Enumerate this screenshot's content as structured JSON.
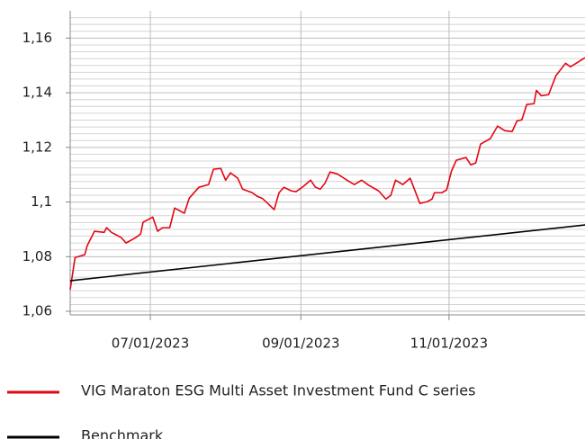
{
  "chart_data": {
    "type": "line",
    "xlim": [
      "2023-05-29",
      "2023-12-27"
    ],
    "xticks": [
      {
        "value": "2023-07-01",
        "label": "07/01/2023"
      },
      {
        "value": "2023-09-01",
        "label": "09/01/2023"
      },
      {
        "value": "2023-11-01",
        "label": "11/01/2023"
      }
    ],
    "ylim": [
      1.0587,
      1.17
    ],
    "yticks": [
      {
        "value": 1.06,
        "label": "1,06"
      },
      {
        "value": 1.08,
        "label": "1,08"
      },
      {
        "value": 1.1,
        "label": "1,1"
      },
      {
        "value": 1.12,
        "label": "1,12"
      },
      {
        "value": 1.14,
        "label": "1,14"
      },
      {
        "value": 1.16,
        "label": "1,16"
      }
    ],
    "yticks_minor": [
      1.0625,
      1.065,
      1.0675,
      1.07,
      1.0725,
      1.075,
      1.0775,
      1.0825,
      1.085,
      1.0875,
      1.09,
      1.0925,
      1.095,
      1.0975,
      1.1025,
      1.105,
      1.1075,
      1.11,
      1.1125,
      1.115,
      1.1175,
      1.1225,
      1.125,
      1.1275,
      1.13,
      1.1325,
      1.135,
      1.1375,
      1.1425,
      1.145,
      1.1475,
      1.15,
      1.1525,
      1.155,
      1.1575,
      1.1625,
      1.165,
      1.1675
    ],
    "grid": true,
    "legend": "bottom",
    "series": [
      {
        "name": "VIG Maraton ESG Multi Asset Investment Fund C series",
        "color": "#e30613",
        "x": [
          "2023-05-29",
          "2023-05-31",
          "2023-06-04",
          "2023-06-05",
          "2023-06-08",
          "2023-06-12",
          "2023-06-13",
          "2023-06-15",
          "2023-06-19",
          "2023-06-21",
          "2023-06-25",
          "2023-06-27",
          "2023-06-28",
          "2023-07-02",
          "2023-07-04",
          "2023-07-06",
          "2023-07-09",
          "2023-07-11",
          "2023-07-15",
          "2023-07-17",
          "2023-07-21",
          "2023-07-25",
          "2023-07-27",
          "2023-07-30",
          "2023-08-01",
          "2023-08-03",
          "2023-08-06",
          "2023-08-08",
          "2023-08-12",
          "2023-08-14",
          "2023-08-16",
          "2023-08-18",
          "2023-08-21",
          "2023-08-23",
          "2023-08-25",
          "2023-08-28",
          "2023-08-30",
          "2023-09-02",
          "2023-09-05",
          "2023-09-07",
          "2023-09-09",
          "2023-09-11",
          "2023-09-13",
          "2023-09-16",
          "2023-09-20",
          "2023-09-23",
          "2023-09-26",
          "2023-09-29",
          "2023-10-03",
          "2023-10-06",
          "2023-10-08",
          "2023-10-10",
          "2023-10-13",
          "2023-10-16",
          "2023-10-20",
          "2023-10-23",
          "2023-10-25",
          "2023-10-26",
          "2023-10-29",
          "2023-10-31",
          "2023-11-02",
          "2023-11-04",
          "2023-11-08",
          "2023-11-10",
          "2023-11-12",
          "2023-11-14",
          "2023-11-18",
          "2023-11-21",
          "2023-11-24",
          "2023-11-27",
          "2023-11-29",
          "2023-12-01",
          "2023-12-03",
          "2023-12-06",
          "2023-12-07",
          "2023-12-09",
          "2023-12-12",
          "2023-12-15",
          "2023-12-19",
          "2023-12-21",
          "2023-12-27"
        ],
        "values": [
          1.0679,
          1.0797,
          1.0807,
          1.084,
          1.0893,
          1.0889,
          1.0906,
          1.0889,
          1.087,
          1.085,
          1.087,
          1.0883,
          1.0926,
          1.0945,
          1.0893,
          1.0906,
          1.0906,
          1.0978,
          1.0959,
          1.1014,
          1.1054,
          1.1064,
          1.112,
          1.1123,
          1.108,
          1.1107,
          1.1087,
          1.1047,
          1.1034,
          1.1021,
          1.1014,
          1.0998,
          1.0972,
          1.1034,
          1.1054,
          1.1041,
          1.1038,
          1.1057,
          1.108,
          1.1054,
          1.1047,
          1.107,
          1.111,
          1.1103,
          1.108,
          1.1064,
          1.108,
          1.1061,
          1.1041,
          1.1011,
          1.1024,
          1.108,
          1.1064,
          1.1087,
          1.0995,
          1.1001,
          1.1011,
          1.1034,
          1.1034,
          1.1044,
          1.1113,
          1.1153,
          1.1163,
          1.1136,
          1.1143,
          1.1212,
          1.1232,
          1.1278,
          1.1261,
          1.1258,
          1.1297,
          1.1301,
          1.1357,
          1.136,
          1.1409,
          1.1389,
          1.1393,
          1.1462,
          1.1508,
          1.1495,
          1.1528
        ]
      },
      {
        "name": "Benchmark",
        "color": "#000000",
        "x": [
          "2023-05-29",
          "2023-12-27"
        ],
        "values": [
          1.0712,
          1.0916
        ]
      }
    ]
  }
}
